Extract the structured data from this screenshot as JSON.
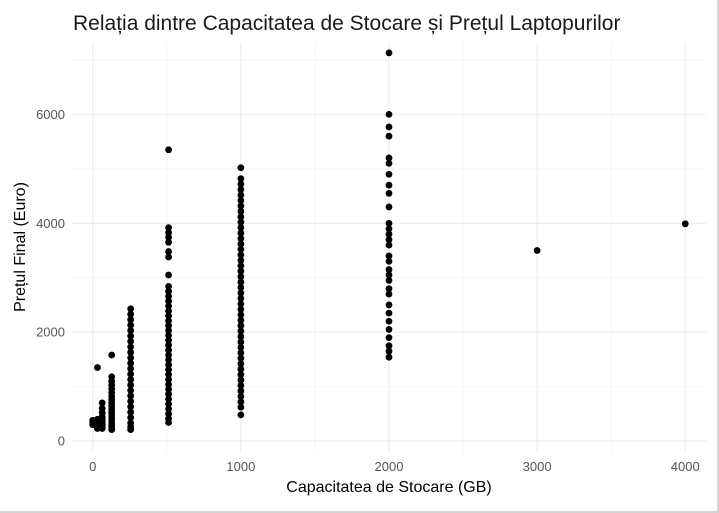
{
  "chart_data": {
    "type": "scatter",
    "title": "Relația dintre Capacitatea de Stocare și Prețul Laptopurilor",
    "xlabel": "Capacitatea de Stocare (GB)",
    "ylabel": "Prețul Final (Euro)",
    "xlim": [
      -140,
      4140
    ],
    "ylim": [
      -220,
      7330
    ],
    "x_ticks": [
      0,
      1000,
      2000,
      3000,
      4000
    ],
    "y_ticks": [
      0,
      2000,
      4000,
      6000
    ],
    "x_tick_labels": [
      "0",
      "1000",
      "2000",
      "3000",
      "4000"
    ],
    "y_tick_labels": [
      "0",
      "2000",
      "4000",
      "6000"
    ],
    "grid": true,
    "legend": "none",
    "point_color": "#000000",
    "series": [
      {
        "points": [
          [
            0,
            380
          ],
          [
            0,
            360
          ],
          [
            0,
            340
          ],
          [
            0,
            300
          ],
          [
            32,
            400
          ],
          [
            32,
            350
          ],
          [
            32,
            320
          ],
          [
            32,
            290
          ],
          [
            32,
            270
          ],
          [
            32,
            250
          ],
          [
            32,
            230
          ],
          [
            32,
            1350
          ],
          [
            64,
            700
          ],
          [
            64,
            600
          ],
          [
            64,
            520
          ],
          [
            64,
            450
          ],
          [
            64,
            400
          ],
          [
            64,
            350
          ],
          [
            64,
            300
          ],
          [
            64,
            260
          ],
          [
            64,
            230
          ],
          [
            128,
            1580
          ],
          [
            128,
            1180
          ],
          [
            128,
            1100
          ],
          [
            128,
            1030
          ],
          [
            128,
            960
          ],
          [
            128,
            890
          ],
          [
            128,
            820
          ],
          [
            128,
            760
          ],
          [
            128,
            700
          ],
          [
            128,
            640
          ],
          [
            128,
            580
          ],
          [
            128,
            520
          ],
          [
            128,
            460
          ],
          [
            128,
            400
          ],
          [
            128,
            340
          ],
          [
            128,
            290
          ],
          [
            128,
            240
          ],
          [
            128,
            210
          ],
          [
            256,
            2430
          ],
          [
            256,
            2330
          ],
          [
            256,
            2230
          ],
          [
            256,
            2130
          ],
          [
            256,
            2030
          ],
          [
            256,
            1930
          ],
          [
            256,
            1830
          ],
          [
            256,
            1730
          ],
          [
            256,
            1630
          ],
          [
            256,
            1530
          ],
          [
            256,
            1430
          ],
          [
            256,
            1330
          ],
          [
            256,
            1230
          ],
          [
            256,
            1130
          ],
          [
            256,
            1030
          ],
          [
            256,
            930
          ],
          [
            256,
            830
          ],
          [
            256,
            730
          ],
          [
            256,
            630
          ],
          [
            256,
            530
          ],
          [
            256,
            430
          ],
          [
            256,
            330
          ],
          [
            256,
            260
          ],
          [
            256,
            210
          ],
          [
            512,
            5350
          ],
          [
            512,
            3920
          ],
          [
            512,
            3830
          ],
          [
            512,
            3740
          ],
          [
            512,
            3650
          ],
          [
            512,
            3480
          ],
          [
            512,
            3380
          ],
          [
            512,
            3050
          ],
          [
            512,
            2840
          ],
          [
            512,
            2750
          ],
          [
            512,
            2660
          ],
          [
            512,
            2570
          ],
          [
            512,
            2480
          ],
          [
            512,
            2390
          ],
          [
            512,
            2300
          ],
          [
            512,
            2210
          ],
          [
            512,
            2120
          ],
          [
            512,
            2030
          ],
          [
            512,
            1940
          ],
          [
            512,
            1850
          ],
          [
            512,
            1760
          ],
          [
            512,
            1670
          ],
          [
            512,
            1580
          ],
          [
            512,
            1490
          ],
          [
            512,
            1400
          ],
          [
            512,
            1310
          ],
          [
            512,
            1220
          ],
          [
            512,
            1130
          ],
          [
            512,
            1040
          ],
          [
            512,
            950
          ],
          [
            512,
            860
          ],
          [
            512,
            770
          ],
          [
            512,
            680
          ],
          [
            512,
            590
          ],
          [
            512,
            500
          ],
          [
            512,
            410
          ],
          [
            512,
            340
          ],
          [
            1000,
            5020
          ],
          [
            1000,
            4820
          ],
          [
            1000,
            4720
          ],
          [
            1000,
            4620
          ],
          [
            1000,
            4520
          ],
          [
            1000,
            4420
          ],
          [
            1000,
            4320
          ],
          [
            1000,
            4220
          ],
          [
            1000,
            4120
          ],
          [
            1000,
            4020
          ],
          [
            1000,
            3920
          ],
          [
            1000,
            3820
          ],
          [
            1000,
            3720
          ],
          [
            1000,
            3620
          ],
          [
            1000,
            3520
          ],
          [
            1000,
            3420
          ],
          [
            1000,
            3320
          ],
          [
            1000,
            3220
          ],
          [
            1000,
            3120
          ],
          [
            1000,
            3020
          ],
          [
            1000,
            2920
          ],
          [
            1000,
            2820
          ],
          [
            1000,
            2720
          ],
          [
            1000,
            2620
          ],
          [
            1000,
            2520
          ],
          [
            1000,
            2420
          ],
          [
            1000,
            2320
          ],
          [
            1000,
            2220
          ],
          [
            1000,
            2120
          ],
          [
            1000,
            2020
          ],
          [
            1000,
            1920
          ],
          [
            1000,
            1820
          ],
          [
            1000,
            1720
          ],
          [
            1000,
            1620
          ],
          [
            1000,
            1520
          ],
          [
            1000,
            1420
          ],
          [
            1000,
            1320
          ],
          [
            1000,
            1220
          ],
          [
            1000,
            1120
          ],
          [
            1000,
            1020
          ],
          [
            1000,
            920
          ],
          [
            1000,
            820
          ],
          [
            1000,
            720
          ],
          [
            1000,
            620
          ],
          [
            1000,
            480
          ],
          [
            2000,
            7130
          ],
          [
            2000,
            6000
          ],
          [
            2000,
            5770
          ],
          [
            2000,
            5600
          ],
          [
            2000,
            5200
          ],
          [
            2000,
            5100
          ],
          [
            2000,
            4900
          ],
          [
            2000,
            4700
          ],
          [
            2000,
            4550
          ],
          [
            2000,
            4300
          ],
          [
            2000,
            4000
          ],
          [
            2000,
            3900
          ],
          [
            2000,
            3800
          ],
          [
            2000,
            3700
          ],
          [
            2000,
            3600
          ],
          [
            2000,
            3400
          ],
          [
            2000,
            3300
          ],
          [
            2000,
            3150
          ],
          [
            2000,
            3050
          ],
          [
            2000,
            2950
          ],
          [
            2000,
            2800
          ],
          [
            2000,
            2700
          ],
          [
            2000,
            2500
          ],
          [
            2000,
            2350
          ],
          [
            2000,
            2200
          ],
          [
            2000,
            2050
          ],
          [
            2000,
            1900
          ],
          [
            2000,
            1750
          ],
          [
            2000,
            1650
          ],
          [
            2000,
            1540
          ],
          [
            3000,
            3500
          ],
          [
            4000,
            3990
          ]
        ]
      }
    ]
  }
}
